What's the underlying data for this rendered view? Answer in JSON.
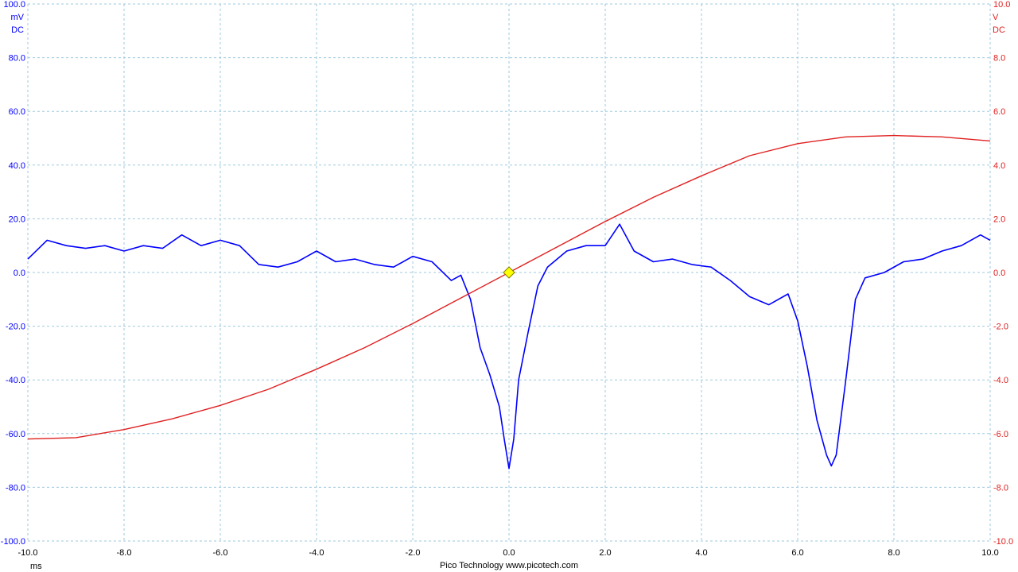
{
  "chart_data": {
    "type": "line",
    "title": "",
    "footer": "Pico Technology  www.picotech.com",
    "x_axis": {
      "unit": "ms",
      "range": [
        -10,
        10
      ],
      "ticks": [
        "-10.0",
        "-8.0",
        "-6.0",
        "-4.0",
        "-2.0",
        "0.0",
        "2.0",
        "4.0",
        "6.0",
        "8.0",
        "10.0"
      ]
    },
    "y_left": {
      "unit": "mV",
      "coupling": "DC",
      "range": [
        -100,
        100
      ],
      "color": "#0000ff",
      "ticks": [
        "100.0",
        "80.0",
        "60.0",
        "40.0",
        "20.0",
        "0.0",
        "-20.0",
        "-40.0",
        "-60.0",
        "-80.0",
        "-100.0"
      ]
    },
    "y_right": {
      "unit": "V",
      "coupling": "DC",
      "range": [
        -10,
        10
      ],
      "color": "#e02020",
      "ticks": [
        "10.0",
        "8.0",
        "6.0",
        "4.0",
        "2.0",
        "0.0",
        "-2.0",
        "-4.0",
        "-6.0",
        "-8.0",
        "-10.0"
      ]
    },
    "grid": true,
    "trigger": {
      "x": 0,
      "y": 0,
      "color": "#ffff00"
    },
    "series": [
      {
        "axis": "left",
        "color": "#0000ff",
        "x": [
          -10,
          -9.6,
          -9.2,
          -8.8,
          -8.4,
          -8.0,
          -7.6,
          -7.2,
          -6.8,
          -6.4,
          -6.0,
          -5.6,
          -5.2,
          -4.8,
          -4.4,
          -4.0,
          -3.6,
          -3.2,
          -2.8,
          -2.4,
          -2.0,
          -1.6,
          -1.2,
          -1.0,
          -0.8,
          -0.6,
          -0.4,
          -0.2,
          -0.1,
          0,
          0.1,
          0.2,
          0.4,
          0.6,
          0.8,
          1.0,
          1.2,
          1.6,
          2.0,
          2.3,
          2.6,
          3.0,
          3.4,
          3.8,
          4.2,
          4.6,
          5.0,
          5.4,
          5.8,
          6.0,
          6.2,
          6.4,
          6.6,
          6.7,
          6.8,
          7.0,
          7.2,
          7.4,
          7.8,
          8.2,
          8.6,
          9.0,
          9.4,
          9.8,
          10.0
        ],
        "y": [
          5,
          12,
          10,
          9,
          10,
          8,
          10,
          9,
          14,
          10,
          12,
          10,
          3,
          2,
          4,
          8,
          4,
          5,
          3,
          2,
          6,
          4,
          -3,
          -1,
          -10,
          -28,
          -38,
          -50,
          -62,
          -73,
          -62,
          -40,
          -22,
          -5,
          2,
          5,
          8,
          10,
          10,
          18,
          8,
          4,
          5,
          3,
          2,
          -3,
          -9,
          -12,
          -8,
          -18,
          -35,
          -55,
          -68,
          -72,
          -68,
          -40,
          -10,
          -2,
          0,
          4,
          5,
          8,
          10,
          14,
          12
        ]
      },
      {
        "axis": "right",
        "color": "#e02020",
        "x": [
          -10,
          -9.0,
          -8.0,
          -7.0,
          -6.0,
          -5.0,
          -4.0,
          -3.0,
          -2.0,
          -1.0,
          0,
          1.0,
          2.0,
          3.0,
          4.0,
          5.0,
          6.0,
          7.0,
          8.0,
          9.0,
          10.0
        ],
        "y": [
          -6.2,
          -6.15,
          -5.85,
          -5.45,
          -4.95,
          -4.35,
          -3.6,
          -2.8,
          -1.9,
          -0.95,
          0,
          0.95,
          1.9,
          2.8,
          3.6,
          4.35,
          4.8,
          5.05,
          5.1,
          5.05,
          4.9
        ]
      }
    ]
  }
}
